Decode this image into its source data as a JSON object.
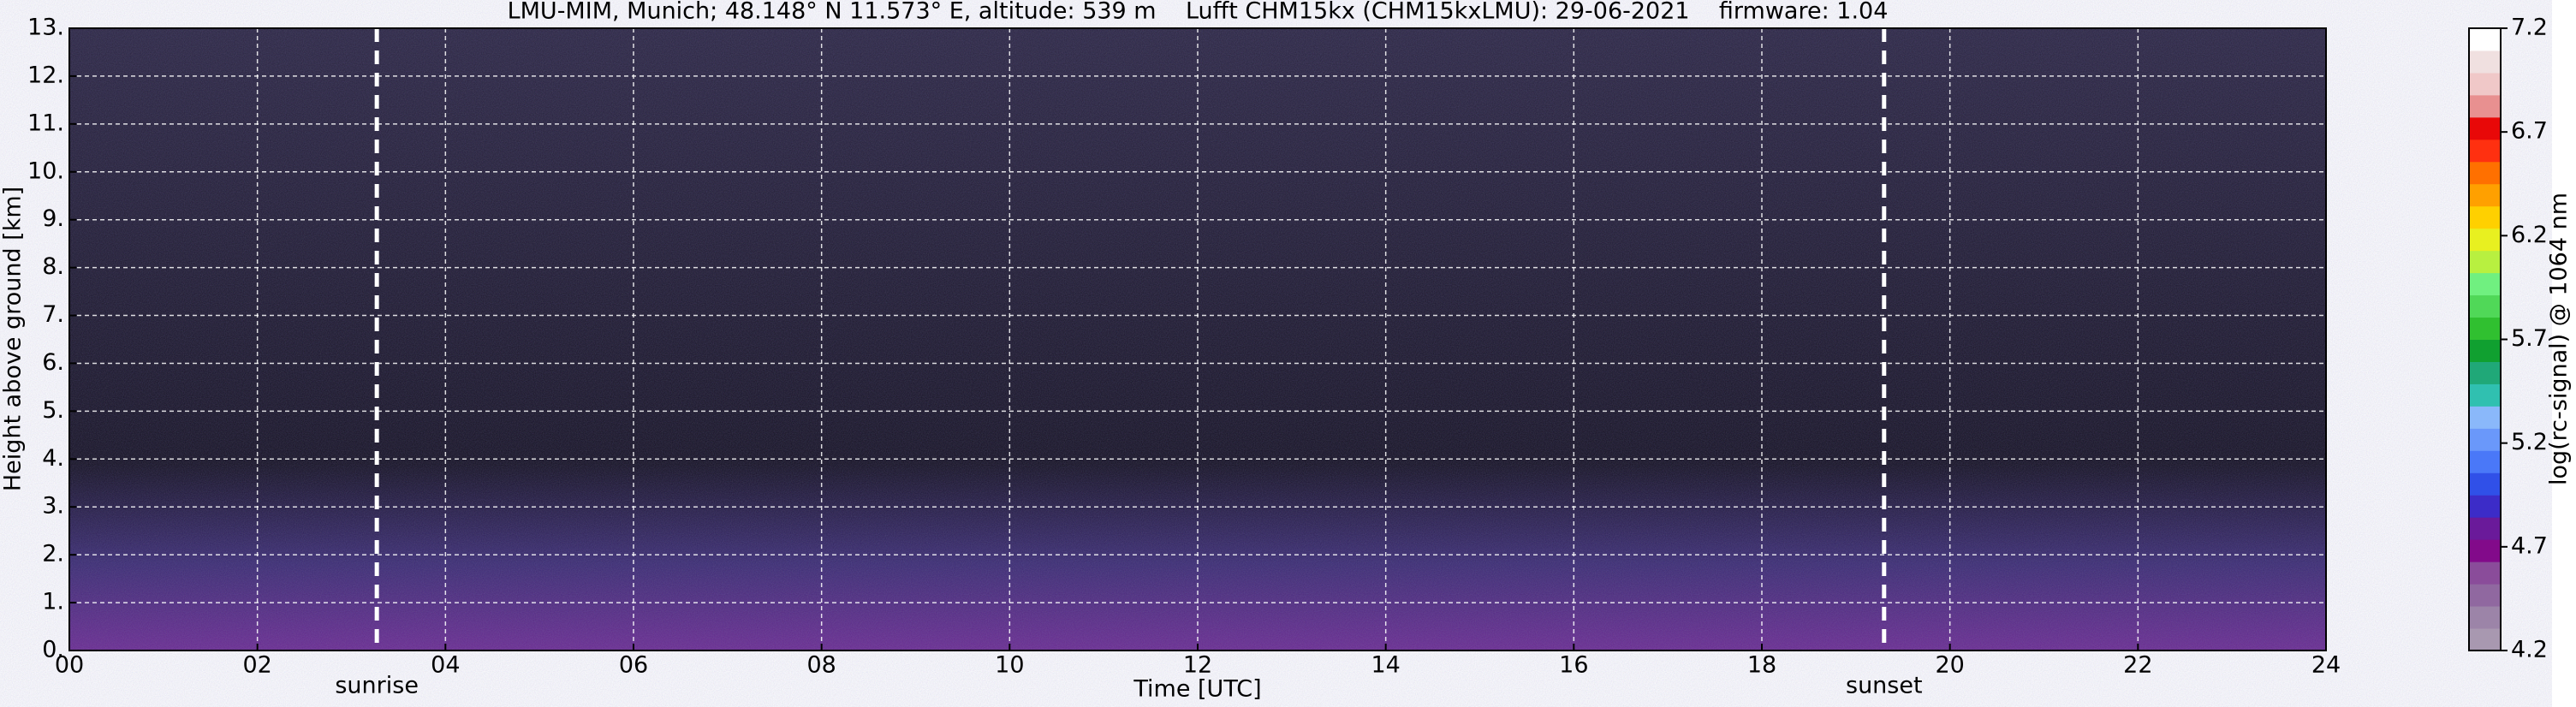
{
  "chart_data": {
    "type": "heatmap",
    "title": "LMU-MIM, Munich; 48.148° N 11.573° E, altitude: 539 m    Lufft CHM15kx (CHM15kxLMU): 29-06-2021    firmware: 1.04",
    "xlabel": "Time [UTC]",
    "ylabel": "Height above ground [km]",
    "xlim": [
      0,
      24
    ],
    "xticks": [
      {
        "value": 0,
        "label": "00"
      },
      {
        "value": 2,
        "label": "02"
      },
      {
        "value": 4,
        "label": "04"
      },
      {
        "value": 6,
        "label": "06"
      },
      {
        "value": 8,
        "label": "08"
      },
      10,
      12,
      14,
      16,
      18,
      20,
      22,
      24
    ],
    "ylim": [
      0,
      13
    ],
    "yticks": [
      {
        "value": 0,
        "label": "0."
      },
      {
        "value": 1,
        "label": "1."
      },
      {
        "value": 2,
        "label": "2."
      },
      {
        "value": 3,
        "label": "3."
      },
      {
        "value": 4,
        "label": "4."
      },
      {
        "value": 5,
        "label": "5."
      },
      {
        "value": 6,
        "label": "6."
      },
      {
        "value": 7,
        "label": "7."
      },
      {
        "value": 8,
        "label": "8."
      },
      {
        "value": 9,
        "label": "9."
      },
      {
        "value": 10,
        "label": "10."
      },
      {
        "value": 11,
        "label": "11."
      },
      {
        "value": 12,
        "label": "12."
      },
      {
        "value": 13,
        "label": "13."
      }
    ],
    "grid": true,
    "annotations": [
      {
        "text": "sunrise",
        "x": 3.27
      },
      {
        "text": "sunset",
        "x": 19.3
      }
    ],
    "colorbar": {
      "label": "log(rc-signal) @ 1064 nm",
      "lim": [
        4.2,
        7.2
      ],
      "ticks": [
        4.2,
        4.7,
        5.2,
        5.7,
        6.2,
        6.7,
        7.2
      ],
      "colors": [
        "#a898b0",
        "#9c84a8",
        "#9068a0",
        "#8a4c9a",
        "#820a8a",
        "#6a1a9a",
        "#3c2cc8",
        "#3050e8",
        "#4a78f8",
        "#6a98fa",
        "#8ab8fa",
        "#30c0b0",
        "#20a878",
        "#10a030",
        "#30c030",
        "#50d858",
        "#70f080",
        "#b8f040",
        "#e8f020",
        "#ffd000",
        "#ffa000",
        "#ff7000",
        "#ff3010",
        "#e80808",
        "#e89090",
        "#f0c8c8",
        "#f0e0e0",
        "#ffffff"
      ]
    }
  }
}
